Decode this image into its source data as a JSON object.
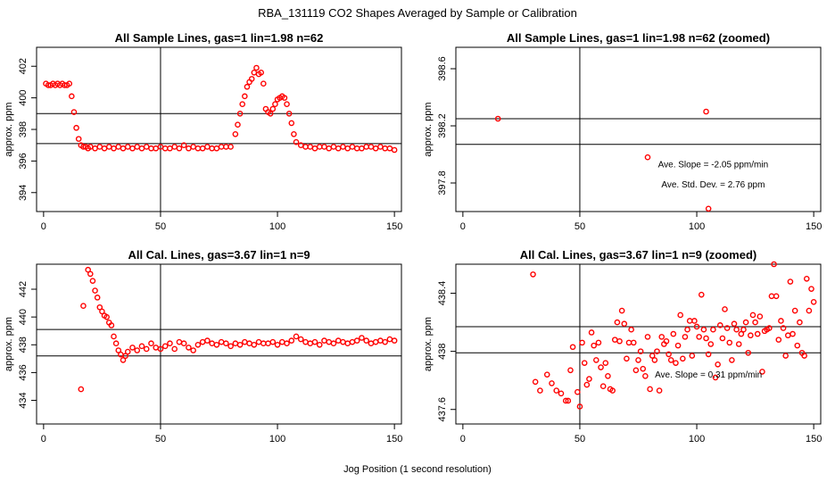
{
  "figure": {
    "title": "RBA_131119  CO2 Shapes Averaged by Sample or Calibration",
    "xlabel": "Jog Position (1 second resolution)"
  },
  "chart_data": [
    {
      "id": "p1",
      "type": "scatter",
      "title": "All Sample Lines, gas=1 lin=1.98 n=62",
      "ylabel": "approx. ppm",
      "xlim": [
        -3,
        153
      ],
      "ylim": [
        392.8,
        403.2
      ],
      "xticks": [
        0,
        50,
        100,
        150
      ],
      "yticks": [
        394,
        396,
        398,
        400,
        402
      ],
      "vline": 50,
      "hlines": [
        399.0,
        397.1
      ],
      "annotations": [],
      "series": [
        {
          "name": "CO2",
          "color": "#ff0000",
          "x": [
            1,
            2,
            3,
            4,
            5,
            6,
            7,
            8,
            9,
            10,
            11,
            12,
            13,
            14,
            15,
            16,
            17,
            18,
            19,
            20,
            22,
            24,
            26,
            28,
            30,
            32,
            34,
            36,
            38,
            40,
            42,
            44,
            46,
            48,
            50,
            52,
            54,
            56,
            58,
            60,
            62,
            64,
            66,
            68,
            70,
            72,
            74,
            76,
            78,
            80,
            82,
            83,
            84,
            85,
            86,
            87,
            88,
            89,
            90,
            91,
            92,
            93,
            94,
            95,
            96,
            97,
            98,
            99,
            100,
            101,
            102,
            103,
            104,
            105,
            106,
            107,
            108,
            110,
            112,
            114,
            116,
            118,
            120,
            122,
            124,
            126,
            128,
            130,
            132,
            134,
            136,
            138,
            140,
            142,
            144,
            146,
            148,
            150
          ],
          "y": [
            400.9,
            400.8,
            400.8,
            400.9,
            400.8,
            400.9,
            400.8,
            400.9,
            400.8,
            400.8,
            400.9,
            400.1,
            399.1,
            398.1,
            397.4,
            397.0,
            396.9,
            396.9,
            396.8,
            396.9,
            396.8,
            396.9,
            396.8,
            396.9,
            396.8,
            396.9,
            396.8,
            396.9,
            396.8,
            396.9,
            396.8,
            396.9,
            396.8,
            396.8,
            396.9,
            396.8,
            396.8,
            396.9,
            396.8,
            397.0,
            396.8,
            396.9,
            396.8,
            396.8,
            396.9,
            396.8,
            396.8,
            396.9,
            396.9,
            396.9,
            397.7,
            398.3,
            399.0,
            399.6,
            400.1,
            400.7,
            401.0,
            401.2,
            401.6,
            401.9,
            401.5,
            401.6,
            400.9,
            399.3,
            399.1,
            399.0,
            399.3,
            399.6,
            399.9,
            400.0,
            400.1,
            400.0,
            399.6,
            399.0,
            398.4,
            397.7,
            397.2,
            397.0,
            396.9,
            396.9,
            396.8,
            396.9,
            396.9,
            396.8,
            396.9,
            396.8,
            396.9,
            396.8,
            396.9,
            396.8,
            396.8,
            396.9,
            396.9,
            396.8,
            396.9,
            396.8,
            396.8,
            396.7
          ]
        }
      ]
    },
    {
      "id": "p2",
      "type": "scatter",
      "title": "All Sample Lines, gas=1 lin=1.98 n=62 (zoomed)",
      "ylabel": "approx. ppm",
      "xlim": [
        -3,
        153
      ],
      "ylim": [
        397.6,
        398.75
      ],
      "xticks": [
        0,
        50,
        100,
        150
      ],
      "yticks": [
        397.8,
        398.2,
        398.6
      ],
      "vline": 50,
      "hlines": [
        398.25,
        398.07
      ],
      "annotations": [
        {
          "text": "Ave. Slope =  -2.05  ppm/min",
          "x": 107,
          "y": 397.91
        },
        {
          "text": "Ave. Std. Dev. =  2.76  ppm",
          "x": 107,
          "y": 397.77
        }
      ],
      "series": [
        {
          "name": "CO2",
          "color": "#ff0000",
          "x": [
            15,
            79,
            104,
            105
          ],
          "y": [
            398.25,
            397.98,
            398.3,
            397.62
          ]
        }
      ]
    },
    {
      "id": "p3",
      "type": "scatter",
      "title": "All Cal. Lines, gas=3.67 lin=1 n=9",
      "ylabel": "approx. ppm",
      "xlim": [
        -3,
        153
      ],
      "ylim": [
        432.3,
        443.8
      ],
      "xticks": [
        0,
        50,
        100,
        150
      ],
      "yticks": [
        434,
        436,
        438,
        440,
        442
      ],
      "vline": 50,
      "hlines": [
        439.1,
        437.2
      ],
      "annotations": [],
      "series": [
        {
          "name": "CO2",
          "color": "#ff0000",
          "x": [
            16,
            17,
            19,
            20,
            21,
            22,
            23,
            24,
            25,
            26,
            27,
            28,
            29,
            30,
            31,
            32,
            33,
            34,
            35,
            36,
            38,
            40,
            42,
            44,
            46,
            48,
            50,
            52,
            54,
            56,
            58,
            60,
            62,
            64,
            66,
            68,
            70,
            72,
            74,
            76,
            78,
            80,
            82,
            84,
            86,
            88,
            90,
            92,
            94,
            96,
            98,
            100,
            102,
            104,
            106,
            108,
            110,
            112,
            114,
            116,
            118,
            120,
            122,
            124,
            126,
            128,
            130,
            132,
            134,
            136,
            138,
            140,
            142,
            144,
            146,
            148,
            150
          ],
          "y": [
            434.8,
            440.8,
            443.4,
            443.1,
            442.6,
            441.9,
            441.4,
            440.7,
            440.4,
            440.1,
            440.0,
            439.6,
            439.4,
            438.6,
            438.1,
            437.6,
            437.3,
            436.9,
            437.2,
            437.5,
            437.8,
            437.6,
            437.9,
            437.7,
            438.1,
            437.8,
            437.7,
            437.9,
            438.1,
            437.7,
            438.2,
            438.1,
            437.8,
            437.6,
            438.0,
            438.2,
            438.3,
            438.1,
            438.0,
            438.2,
            438.1,
            437.9,
            438.1,
            438.0,
            438.2,
            438.1,
            438.0,
            438.2,
            438.1,
            438.1,
            438.2,
            438.0,
            438.2,
            438.1,
            438.3,
            438.6,
            438.4,
            438.2,
            438.1,
            438.2,
            438.0,
            438.3,
            438.2,
            438.1,
            438.3,
            438.2,
            438.1,
            438.2,
            438.3,
            438.5,
            438.3,
            438.1,
            438.2,
            438.3,
            438.2,
            438.4,
            438.3
          ]
        }
      ]
    },
    {
      "id": "p4",
      "type": "scatter",
      "title": "All Cal. Lines, gas=3.67 lin=1 n=9 (zoomed)",
      "ylabel": "approx. ppm",
      "xlim": [
        -3,
        153
      ],
      "ylim": [
        437.5,
        438.6
      ],
      "xticks": [
        0,
        50,
        100,
        150
      ],
      "yticks": [
        437.6,
        438.0,
        438.4
      ],
      "vline": 50,
      "hlines": [
        438.17,
        437.99
      ],
      "annotations": [
        {
          "text": "Ave. Slope =  0.31  ppm/min",
          "x": 105,
          "y": 437.82
        }
      ],
      "series": [
        {
          "name": "CO2",
          "color": "#ff0000",
          "x": [
            30,
            31,
            33,
            36,
            38,
            40,
            42,
            44,
            45,
            46,
            47,
            49,
            50,
            51,
            52,
            53,
            54,
            55,
            56,
            57,
            58,
            59,
            60,
            61,
            62,
            63,
            64,
            65,
            66,
            67,
            68,
            69,
            70,
            71,
            72,
            73,
            74,
            75,
            76,
            77,
            78,
            79,
            80,
            81,
            82,
            83,
            84,
            85,
            86,
            87,
            88,
            89,
            90,
            91,
            92,
            93,
            94,
            95,
            96,
            97,
            98,
            99,
            100,
            101,
            102,
            103,
            104,
            105,
            106,
            107,
            108,
            109,
            110,
            111,
            112,
            113,
            114,
            115,
            116,
            117,
            118,
            119,
            120,
            121,
            122,
            123,
            124,
            125,
            126,
            127,
            128,
            129,
            130,
            131,
            132,
            133,
            134,
            135,
            136,
            137,
            138,
            139,
            140,
            141,
            142,
            143,
            144,
            145,
            146,
            147,
            148,
            149,
            150
          ],
          "y": [
            438.53,
            437.79,
            437.73,
            437.84,
            437.78,
            437.73,
            437.71,
            437.66,
            437.66,
            437.87,
            438.03,
            437.72,
            437.62,
            438.06,
            437.92,
            437.77,
            437.81,
            438.13,
            438.04,
            437.94,
            438.06,
            437.89,
            437.76,
            437.92,
            437.83,
            437.74,
            437.73,
            438.08,
            438.2,
            438.07,
            438.28,
            438.19,
            437.95,
            438.06,
            438.15,
            438.06,
            437.87,
            437.94,
            438.0,
            437.88,
            437.83,
            438.1,
            437.74,
            437.97,
            437.94,
            438.0,
            437.73,
            438.1,
            438.05,
            438.07,
            437.98,
            437.94,
            438.12,
            437.92,
            438.04,
            438.25,
            437.95,
            438.1,
            438.15,
            438.21,
            437.97,
            438.21,
            438.17,
            438.1,
            438.39,
            438.15,
            438.09,
            437.98,
            438.05,
            438.15,
            437.82,
            437.91,
            438.18,
            438.09,
            438.29,
            438.16,
            438.06,
            437.94,
            438.19,
            438.15,
            438.05,
            438.12,
            438.15,
            438.2,
            437.99,
            438.11,
            438.25,
            438.2,
            438.12,
            438.24,
            437.86,
            438.14,
            438.15,
            438.16,
            438.38,
            438.6,
            438.38,
            438.08,
            438.21,
            438.16,
            437.97,
            438.11,
            438.48,
            438.12,
            438.28,
            438.04,
            438.2,
            437.99,
            437.97,
            438.5,
            438.28,
            438.43,
            438.34
          ]
        }
      ]
    }
  ]
}
